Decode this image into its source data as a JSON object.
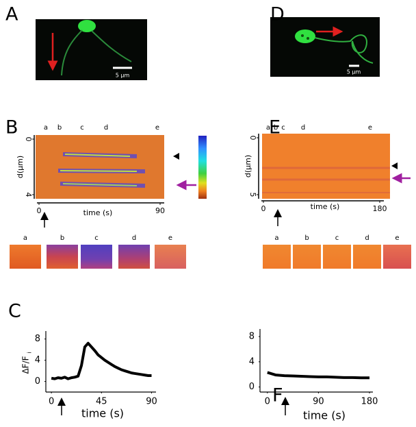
{
  "panel_labels": [
    "A",
    "B",
    "C",
    "D",
    "E",
    "F"
  ],
  "micrographs": [
    {
      "scale_bar": "5 µm"
    },
    {
      "scale_bar": "5 µm"
    }
  ],
  "kymographs": [
    {
      "y_label": "d(µm)",
      "x_label": "time (s)",
      "ylim": [
        0,
        4
      ],
      "yticks": [
        0,
        4
      ],
      "xlim": [
        0,
        90
      ],
      "xticks": [
        0,
        90
      ],
      "time_points": [
        "a",
        "b",
        "c",
        "d",
        "e"
      ],
      "frames": [
        "a",
        "b",
        "c",
        "d",
        "e"
      ]
    },
    {
      "y_label": "d(µm)",
      "x_label": "time (s)",
      "ylim": [
        0,
        5
      ],
      "yticks": [
        0,
        5
      ],
      "xlim": [
        0,
        180
      ],
      "xticks": [
        0,
        180
      ],
      "time_points": [
        "a",
        "b",
        "c",
        "d",
        "e"
      ],
      "frames": [
        "a",
        "b",
        "c",
        "d",
        "e"
      ]
    }
  ],
  "chart_data": [
    {
      "type": "line",
      "y_label": "ΔF/F",
      "y_label_subscript": "i",
      "x_label": "time (s)",
      "color": "#000000",
      "x": [
        0,
        3,
        6,
        9,
        12,
        15,
        18,
        21,
        24,
        27,
        30,
        33,
        36,
        39,
        42,
        45,
        48,
        51,
        54,
        57,
        60,
        63,
        66,
        69,
        72,
        75,
        78,
        81,
        84,
        87,
        90
      ],
      "values": [
        0.6,
        0.5,
        0.7,
        0.6,
        0.8,
        0.5,
        0.7,
        0.8,
        1.0,
        3.0,
        6.5,
        7.2,
        6.5,
        5.8,
        5.0,
        4.5,
        4.0,
        3.6,
        3.2,
        2.8,
        2.5,
        2.2,
        2.0,
        1.8,
        1.6,
        1.5,
        1.4,
        1.3,
        1.2,
        1.1,
        1.1
      ],
      "xlim": [
        -5,
        94
      ],
      "ylim": [
        -2,
        9.5
      ],
      "xticks": [
        0,
        45,
        90
      ],
      "yticks": [
        0,
        4,
        8
      ]
    },
    {
      "type": "line",
      "x_label": "time (s)",
      "color": "#000000",
      "x": [
        0,
        15,
        30,
        45,
        60,
        75,
        90,
        105,
        120,
        135,
        150,
        165,
        180
      ],
      "values": [
        2.3,
        1.9,
        1.8,
        1.75,
        1.7,
        1.65,
        1.6,
        1.6,
        1.55,
        1.5,
        1.5,
        1.45,
        1.45
      ],
      "xlim": [
        -13,
        186
      ],
      "ylim": [
        -0.8,
        9.2
      ],
      "xticks": [
        0,
        90,
        180
      ],
      "yticks": [
        0,
        4,
        8
      ]
    }
  ]
}
